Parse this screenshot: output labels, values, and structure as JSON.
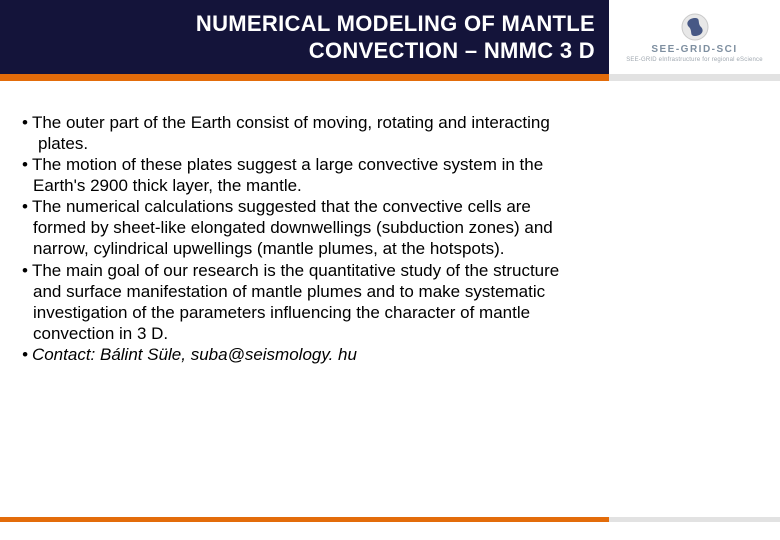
{
  "header": {
    "title_line1": "NUMERICAL MODELING OF MANTLE",
    "title_line2": "CONVECTION – NMMC 3 D",
    "bg_color": "#14143a",
    "text_color": "#ffffff",
    "title_fontsize": 22
  },
  "logo": {
    "text": "SEE-GRID-SCI",
    "subtext": "SEE-GRID eInfrastructure for regional eScience",
    "icon_outer": "#c9c9c9",
    "icon_inner": "#2a3e73",
    "text_color": "#7e8fa0"
  },
  "accent": {
    "orange": "#e36c0a",
    "gray": "#e2e2e2"
  },
  "body": {
    "fontsize": 17,
    "text_color": "#000000",
    "bullets": [
      {
        "lines": [
          "The outer part of the Earth consist of moving, rotating and interacting",
          "plates."
        ],
        "indent_cont": true
      },
      {
        "lines": [
          "The motion of these plates suggest a large convective system in the",
          "Earth's 2900 thick layer, the mantle."
        ],
        "indent_cont": false
      },
      {
        "lines": [
          "The numerical calculations suggested that the convective cells are",
          "formed by sheet-like  elongated downwellings (subduction zones) and",
          "narrow, cylindrical upwellings (mantle plumes,  at the hotspots)."
        ],
        "indent_cont": false
      },
      {
        "lines": [
          "The main goal of our research is the quantitative study of the structure",
          "and surface  manifestation of mantle plumes and to make systematic",
          "investigation of the parameters  influencing the character of mantle",
          "convection in 3 D."
        ],
        "indent_cont": false
      },
      {
        "lines": [
          "Contact: Bálint Süle, suba@seismology. hu"
        ],
        "indent_cont": false,
        "italic": true
      }
    ]
  }
}
